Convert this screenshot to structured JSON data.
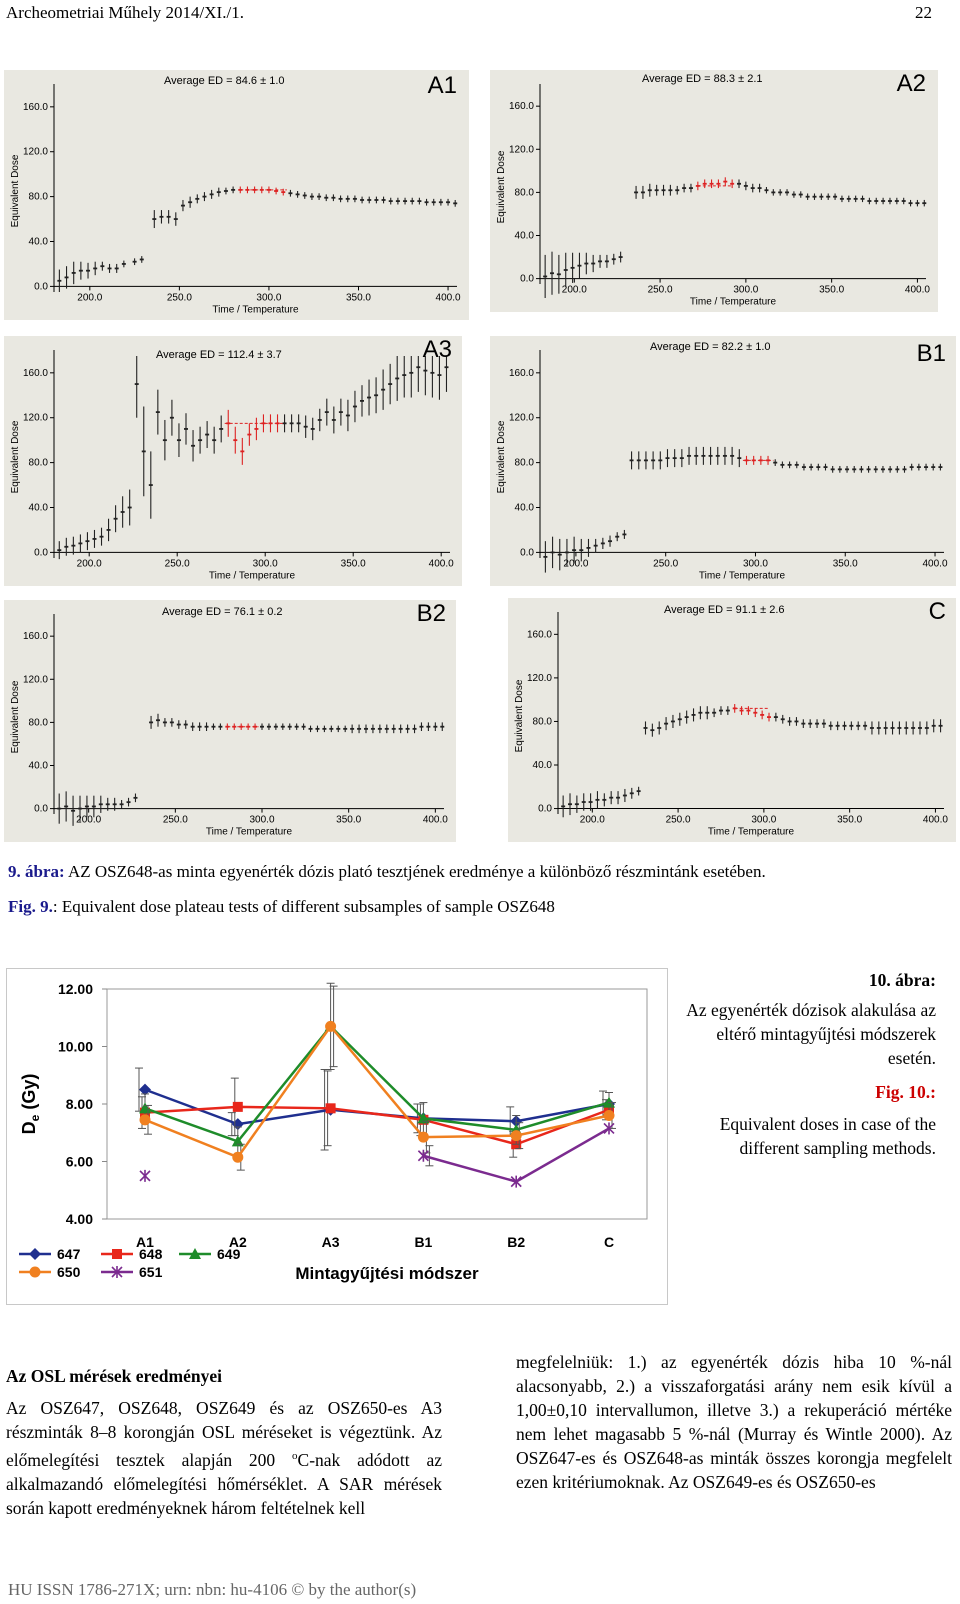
{
  "header": {
    "journal": "Archeometriai Műhely 2014/XI./1.",
    "page": "22"
  },
  "panels": [
    {
      "label": "A1",
      "avg": "Average ED =  84.6 ±   1.0"
    },
    {
      "label": "A2",
      "avg": "Average ED =  88.3 ±   2.1"
    },
    {
      "label": "A3",
      "avg": "Average ED = 112.4 ±   3.7"
    },
    {
      "label": "B1",
      "avg": "Average ED =  82.2 ±   1.0"
    },
    {
      "label": "B2",
      "avg": "Average ED =  76.1 ±   0.2"
    },
    {
      "label": "C",
      "avg": "Average ED =  91.1 ±   2.6"
    }
  ],
  "panel_axes": {
    "xlabel": "Time / Temperature",
    "ylabel": "Equivalent Dose",
    "xticks": [
      "200.0",
      "250.0",
      "300.0",
      "350.0",
      "400.0"
    ],
    "yticks": [
      "160.0",
      "120.0",
      "80.0",
      "40.0",
      "0.0"
    ]
  },
  "fig9": {
    "hu_label": "9. ábra:",
    "hu_text": " AZ OSZ648-as minta egyenérték dózis plató tesztjének eredménye a különböző részmintánk esetében.",
    "en_label": "Fig. 9.",
    "en_text": ": Equivalent dose plateau tests of different subsamples of sample OSZ648"
  },
  "fig10": {
    "hu_label": "10. ábra:",
    "hu_text": "Az egyenérték dózisok alakulása az eltérő mintagyűjtési módszerek esetén.",
    "en_label": "Fig. 10.:",
    "en_text": "Equivalent doses in case of the different sampling methods."
  },
  "chart_data": [
    {
      "type": "line",
      "title": "Mintagyűjtési módszer",
      "xlabel": "Mintagyűjtési módszer",
      "ylabel": "De (Gy)",
      "ylabel_main": "D",
      "ylabel_sub": "e",
      "ylabel_rest": " (Gy)",
      "categories": [
        "A1",
        "A2",
        "A3",
        "B1",
        "B2",
        "C"
      ],
      "ylim": [
        4,
        12
      ],
      "yticks": [
        "12.00",
        "10.00",
        "8.00",
        "6.00",
        "4.00"
      ],
      "legend_position": "bottom-left",
      "series": [
        {
          "name": "647",
          "color": "#1f2f8f",
          "marker": "diamond",
          "values": [
            8.5,
            7.3,
            7.8,
            7.5,
            7.4,
            8.0
          ],
          "errors": [
            0.75,
            0.4,
            1.4,
            0.5,
            0.5,
            0.45
          ]
        },
        {
          "name": "648",
          "color": "#e8271b",
          "marker": "square",
          "values": [
            7.7,
            7.9,
            7.85,
            7.45,
            6.6,
            7.8
          ],
          "errors": [
            0.55,
            1.0,
            1.3,
            0.55,
            0.45,
            0.35
          ]
        },
        {
          "name": "649",
          "color": "#1e8c2a",
          "marker": "triangle",
          "values": [
            7.85,
            6.7,
            10.7,
            7.5,
            7.1,
            8.05
          ],
          "errors": [
            0.5,
            0.5,
            1.5,
            0.55,
            0.5,
            0.35
          ]
        },
        {
          "name": "650",
          "color": "#f08020",
          "marker": "circle",
          "values": [
            7.45,
            6.15,
            10.7,
            6.85,
            6.9,
            7.6
          ],
          "errors": [
            0.5,
            0.45,
            1.4,
            0.55,
            0.45,
            0.45
          ]
        },
        {
          "name": "651",
          "color": "#7b2b8f",
          "marker": "star",
          "values": [
            5.5,
            null,
            null,
            6.2,
            5.3,
            7.15
          ],
          "errors": [
            0,
            0,
            0,
            0.35,
            0,
            0
          ]
        }
      ]
    },
    {
      "type": "scatter",
      "panel": "A1",
      "xlabel": "Time / Temperature",
      "ylabel": "Equivalent Dose",
      "xlim": [
        180,
        405
      ],
      "ylim": [
        -5,
        175
      ],
      "x": [
        183,
        187,
        191,
        195,
        199,
        203,
        207,
        211,
        215,
        219,
        225,
        229,
        236,
        240,
        244,
        248,
        252,
        256,
        260,
        264,
        268,
        272,
        276,
        280,
        284,
        288,
        292,
        296,
        300,
        304,
        308,
        312,
        316,
        320,
        324,
        328,
        332,
        336,
        340,
        344,
        348,
        352,
        356,
        360,
        364,
        368,
        372,
        376,
        380,
        384,
        388,
        392,
        396,
        400,
        404
      ],
      "y": [
        5,
        8,
        12,
        14,
        14,
        16,
        18,
        16,
        16,
        20,
        22,
        24,
        60,
        62,
        62,
        60,
        72,
        75,
        78,
        80,
        82,
        84,
        85,
        86,
        86,
        86,
        86,
        86,
        86,
        85,
        84,
        83,
        82,
        81,
        80,
        80,
        79,
        79,
        78,
        78,
        78,
        77,
        77,
        77,
        77,
        76,
        76,
        76,
        76,
        76,
        75,
        75,
        75,
        75,
        74
      ],
      "errors": [
        10,
        10,
        10,
        8,
        7,
        6,
        4,
        4,
        4,
        3,
        3,
        3,
        8,
        6,
        6,
        6,
        5,
        5,
        4,
        4,
        4,
        4,
        3,
        3,
        3,
        3,
        3,
        3,
        3,
        3,
        3,
        3,
        3,
        3,
        3,
        3,
        3,
        3,
        3,
        3,
        3,
        3,
        3,
        3,
        3,
        3,
        3,
        3,
        3,
        3,
        3,
        3,
        3,
        3,
        3
      ],
      "plateau": [
        284,
        310
      ]
    },
    {
      "type": "scatter",
      "panel": "A2",
      "xlabel": "Time / Temperature",
      "ylabel": "Equivalent Dose",
      "xlim": [
        180,
        405
      ],
      "ylim": [
        -5,
        175
      ],
      "x": [
        183,
        187,
        191,
        195,
        199,
        203,
        207,
        211,
        215,
        219,
        223,
        227,
        236,
        240,
        244,
        248,
        252,
        256,
        260,
        264,
        268,
        272,
        276,
        280,
        284,
        288,
        292,
        296,
        300,
        304,
        308,
        312,
        316,
        320,
        324,
        328,
        332,
        336,
        340,
        344,
        348,
        352,
        356,
        360,
        364,
        368,
        372,
        376,
        380,
        384,
        388,
        392,
        396,
        400,
        404
      ],
      "y": [
        2,
        5,
        4,
        8,
        10,
        12,
        14,
        14,
        16,
        16,
        18,
        20,
        80,
        80,
        82,
        82,
        82,
        82,
        82,
        84,
        84,
        86,
        88,
        88,
        88,
        90,
        88,
        88,
        86,
        84,
        84,
        82,
        80,
        80,
        80,
        78,
        78,
        76,
        76,
        76,
        76,
        76,
        74,
        74,
        74,
        74,
        72,
        72,
        72,
        72,
        72,
        72,
        70,
        70,
        70
      ],
      "errors": [
        20,
        20,
        18,
        16,
        14,
        12,
        10,
        8,
        6,
        6,
        5,
        5,
        6,
        6,
        6,
        5,
        5,
        5,
        4,
        4,
        4,
        4,
        4,
        4,
        4,
        4,
        4,
        4,
        4,
        4,
        4,
        3,
        3,
        3,
        3,
        3,
        3,
        3,
        3,
        3,
        3,
        3,
        3,
        3,
        3,
        3,
        3,
        3,
        3,
        3,
        3,
        3,
        3,
        3,
        3
      ],
      "plateau": [
        272,
        292
      ]
    },
    {
      "type": "scatter",
      "panel": "A3",
      "xlabel": "Time / Temperature",
      "ylabel": "Equivalent Dose",
      "xlim": [
        180,
        405
      ],
      "ylim": [
        -5,
        175
      ],
      "x": [
        183,
        187,
        191,
        195,
        199,
        203,
        207,
        211,
        215,
        219,
        223,
        227,
        231,
        235,
        239,
        243,
        247,
        251,
        255,
        259,
        263,
        267,
        271,
        275,
        279,
        283,
        287,
        291,
        295,
        299,
        303,
        307,
        311,
        315,
        319,
        323,
        327,
        331,
        335,
        339,
        343,
        347,
        351,
        355,
        359,
        363,
        367,
        371,
        375,
        379,
        383,
        387,
        391,
        395,
        399,
        403
      ],
      "y": [
        2,
        5,
        6,
        8,
        10,
        12,
        14,
        20,
        30,
        36,
        40,
        150,
        90,
        60,
        125,
        100,
        120,
        100,
        110,
        95,
        100,
        105,
        100,
        110,
        115,
        100,
        90,
        105,
        110,
        115,
        115,
        115,
        115,
        115,
        115,
        112,
        110,
        118,
        125,
        118,
        125,
        122,
        130,
        135,
        138,
        140,
        145,
        150,
        155,
        158,
        160,
        165,
        162,
        160,
        158,
        165
      ],
      "errors": [
        8,
        8,
        8,
        8,
        8,
        8,
        8,
        10,
        12,
        14,
        16,
        30,
        40,
        30,
        20,
        18,
        16,
        15,
        14,
        14,
        12,
        12,
        12,
        12,
        12,
        12,
        12,
        10,
        10,
        8,
        8,
        8,
        8,
        8,
        8,
        10,
        10,
        10,
        12,
        12,
        12,
        14,
        14,
        14,
        16,
        16,
        18,
        18,
        20,
        20,
        22,
        22,
        22,
        22,
        22,
        22
      ],
      "plateau": [
        277,
        310
      ]
    },
    {
      "type": "scatter",
      "panel": "B1",
      "xlabel": "Time / Temperature",
      "ylabel": "Equivalent Dose",
      "xlim": [
        180,
        405
      ],
      "ylim": [
        -5,
        175
      ],
      "x": [
        183,
        187,
        191,
        195,
        199,
        203,
        207,
        211,
        215,
        219,
        223,
        227,
        231,
        235,
        239,
        243,
        247,
        251,
        255,
        259,
        263,
        267,
        271,
        275,
        279,
        283,
        287,
        291,
        295,
        299,
        303,
        307,
        311,
        315,
        319,
        323,
        327,
        331,
        335,
        339,
        343,
        347,
        351,
        355,
        359,
        363,
        367,
        371,
        375,
        379,
        383,
        387,
        391,
        395,
        399,
        403
      ],
      "y": [
        -4,
        0,
        -2,
        0,
        2,
        2,
        4,
        6,
        8,
        10,
        14,
        16,
        82,
        82,
        82,
        82,
        82,
        84,
        84,
        84,
        86,
        86,
        86,
        86,
        86,
        86,
        86,
        84,
        82,
        82,
        82,
        82,
        80,
        78,
        78,
        78,
        76,
        76,
        76,
        76,
        74,
        74,
        74,
        74,
        74,
        74,
        74,
        74,
        74,
        74,
        74,
        76,
        76,
        76,
        76,
        76
      ],
      "errors": [
        14,
        14,
        14,
        12,
        12,
        10,
        8,
        6,
        5,
        5,
        4,
        4,
        8,
        8,
        8,
        8,
        8,
        8,
        8,
        8,
        8,
        8,
        8,
        8,
        8,
        8,
        8,
        8,
        4,
        4,
        4,
        4,
        3,
        3,
        3,
        3,
        3,
        3,
        3,
        3,
        3,
        3,
        3,
        3,
        3,
        3,
        3,
        3,
        3,
        3,
        3,
        3,
        3,
        3,
        3,
        3
      ],
      "plateau": [
        293,
        310
      ]
    },
    {
      "type": "scatter",
      "panel": "B2",
      "xlabel": "Time / Temperature",
      "ylabel": "Equivalent Dose",
      "xlim": [
        180,
        405
      ],
      "ylim": [
        -5,
        175
      ],
      "x": [
        183,
        187,
        191,
        195,
        199,
        203,
        207,
        211,
        215,
        219,
        223,
        227,
        236,
        240,
        244,
        248,
        252,
        256,
        260,
        264,
        268,
        272,
        276,
        280,
        284,
        288,
        292,
        296,
        300,
        304,
        308,
        312,
        316,
        320,
        324,
        328,
        332,
        336,
        340,
        344,
        348,
        352,
        356,
        360,
        364,
        368,
        372,
        376,
        380,
        384,
        388,
        392,
        396,
        400,
        404
      ],
      "y": [
        0,
        2,
        -2,
        0,
        2,
        2,
        4,
        4,
        4,
        4,
        6,
        10,
        80,
        82,
        80,
        80,
        78,
        78,
        76,
        76,
        76,
        76,
        76,
        76,
        76,
        76,
        76,
        76,
        76,
        76,
        76,
        76,
        76,
        76,
        76,
        74,
        74,
        74,
        74,
        74,
        74,
        74,
        74,
        74,
        74,
        74,
        74,
        74,
        74,
        74,
        74,
        76,
        76,
        76,
        76
      ],
      "errors": [
        14,
        14,
        14,
        12,
        10,
        10,
        8,
        6,
        6,
        4,
        4,
        4,
        6,
        6,
        4,
        4,
        4,
        4,
        4,
        4,
        4,
        3,
        3,
        3,
        3,
        3,
        3,
        3,
        3,
        3,
        3,
        3,
        3,
        3,
        3,
        3,
        3,
        3,
        3,
        3,
        3,
        4,
        4,
        4,
        4,
        4,
        4,
        4,
        4,
        4,
        4,
        4,
        4,
        4,
        4
      ],
      "plateau": [
        280,
        298
      ]
    },
    {
      "type": "scatter",
      "panel": "C",
      "xlabel": "Time / Temperature",
      "ylabel": "Equivalent Dose",
      "xlim": [
        180,
        405
      ],
      "ylim": [
        -5,
        175
      ],
      "x": [
        183,
        187,
        191,
        195,
        199,
        203,
        207,
        211,
        215,
        219,
        223,
        227,
        231,
        235,
        239,
        243,
        247,
        251,
        255,
        259,
        263,
        267,
        271,
        275,
        279,
        283,
        287,
        291,
        295,
        299,
        303,
        307,
        311,
        315,
        319,
        323,
        327,
        331,
        335,
        339,
        343,
        347,
        351,
        355,
        359,
        363,
        367,
        371,
        375,
        379,
        383,
        387,
        391,
        395,
        399,
        403
      ],
      "y": [
        2,
        4,
        4,
        6,
        6,
        8,
        8,
        10,
        10,
        12,
        14,
        16,
        74,
        72,
        74,
        78,
        80,
        82,
        84,
        86,
        88,
        88,
        88,
        90,
        90,
        92,
        90,
        90,
        88,
        86,
        84,
        84,
        82,
        80,
        80,
        78,
        78,
        78,
        78,
        76,
        76,
        76,
        76,
        76,
        76,
        74,
        74,
        74,
        74,
        74,
        74,
        74,
        74,
        74,
        76,
        76
      ],
      "errors": [
        10,
        10,
        8,
        8,
        8,
        8,
        6,
        6,
        6,
        6,
        5,
        4,
        6,
        6,
        6,
        6,
        6,
        6,
        6,
        6,
        6,
        6,
        4,
        4,
        4,
        4,
        4,
        4,
        4,
        4,
        4,
        4,
        4,
        4,
        4,
        4,
        4,
        4,
        4,
        4,
        4,
        4,
        4,
        4,
        4,
        6,
        6,
        6,
        6,
        6,
        6,
        6,
        6,
        6,
        6,
        6
      ],
      "plateau": [
        283,
        303
      ]
    }
  ],
  "section": {
    "heading": "Az OSL mérések eredményei",
    "col1": "Az OSZ647, OSZ648, OSZ649 és az OSZ650-es A3 részminták 8–8 korongján OSL méréseket is végeztünk. Az előmelegítési tesztek alapján 200",
    "col1_sup": "o",
    "col1_after": "C-nak adódott az alkalmazandó előmelegítési hőmérséklet. A SAR mérések során kapott eredményeknek három feltételnek kell",
    "col2": "megfelelniük: 1.) az egyenérték dózis hiba 10 %-nál alacsonyabb, 2.) a visszaforgatási arány nem esik kívül a 1,00±0,10 intervallumon, illetve 3.) a rekuperáció mértéke nem lehet magasabb 5 %-nál (Murray és Wintle 2000). Az OSZ647-es és OSZ648-as minták összes korongja megfelelt ezen kritériumoknak. Az OSZ649-es és OSZ650-es"
  },
  "footer": "HU ISSN 1786-271X; urn: nbn: hu-4106 © by the author(s)"
}
